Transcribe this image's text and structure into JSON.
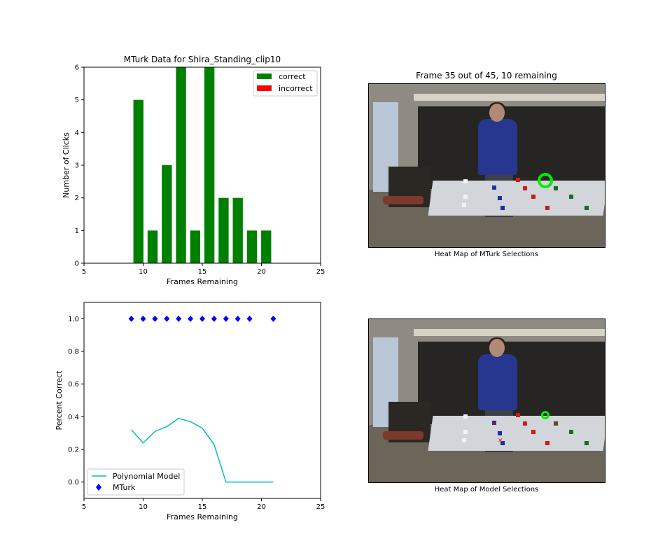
{
  "chart_data": [
    {
      "type": "bar",
      "title": "MTurk Data for Shira_Standing_clip10",
      "xlabel": "Frames Remaining",
      "ylabel": "Number of Clicks",
      "xlim": [
        5,
        25
      ],
      "ylim": [
        0,
        6
      ],
      "xticks": [
        "5",
        "10",
        "15",
        "20",
        "25"
      ],
      "yticks": [
        "0",
        "1",
        "2",
        "3",
        "4",
        "5",
        "6"
      ],
      "x": [
        9.6,
        10.8,
        12,
        13.2,
        14.4,
        15.6,
        16.8,
        18,
        19.2,
        20.4
      ],
      "bar_width": 0.85,
      "series": [
        {
          "name": "correct",
          "color": "#008000",
          "values": [
            5,
            1,
            3,
            6,
            1,
            6,
            2,
            2,
            1,
            1
          ]
        },
        {
          "name": "incorrect",
          "color": "#ff0000",
          "values": [
            0,
            0,
            0,
            0,
            0,
            0,
            0,
            0,
            0,
            0
          ]
        }
      ],
      "legend": "top-right",
      "grid": false
    },
    {
      "type": "line",
      "title": "",
      "xlabel": "Frames Remaining",
      "ylabel": "Percent Correct",
      "xlim": [
        5,
        25
      ],
      "ylim": [
        -0.1,
        1.1
      ],
      "xticks": [
        "5",
        "10",
        "15",
        "20",
        "25"
      ],
      "yticks": [
        "0.0",
        "0.2",
        "0.4",
        "0.6",
        "0.8",
        "1.0"
      ],
      "series": [
        {
          "name": "Polynomial Model",
          "kind": "line",
          "color": "#00bfbf",
          "x": [
            9,
            10,
            11,
            12,
            13,
            14,
            15,
            16,
            17,
            18,
            19,
            20,
            21
          ],
          "y": [
            0.32,
            0.24,
            0.31,
            0.34,
            0.39,
            0.37,
            0.33,
            0.23,
            0.0,
            0.0,
            0.0,
            0.0,
            0.0
          ]
        },
        {
          "name": "MTurk",
          "kind": "scatter",
          "marker": "diamond",
          "color": "#0000ff",
          "x": [
            9,
            10,
            11,
            12,
            13,
            14,
            15,
            16,
            17,
            18,
            19,
            21
          ],
          "y": [
            1,
            1,
            1,
            1,
            1,
            1,
            1,
            1,
            1,
            1,
            1,
            1
          ]
        }
      ],
      "legend": "bottom-left",
      "grid": false
    }
  ],
  "images": {
    "top": {
      "title": "Frame 35 out of 45, 10 remaining",
      "caption": "Heat Map of MTurk Selections"
    },
    "bottom": {
      "caption": "Heat Map of Model Selections"
    }
  }
}
